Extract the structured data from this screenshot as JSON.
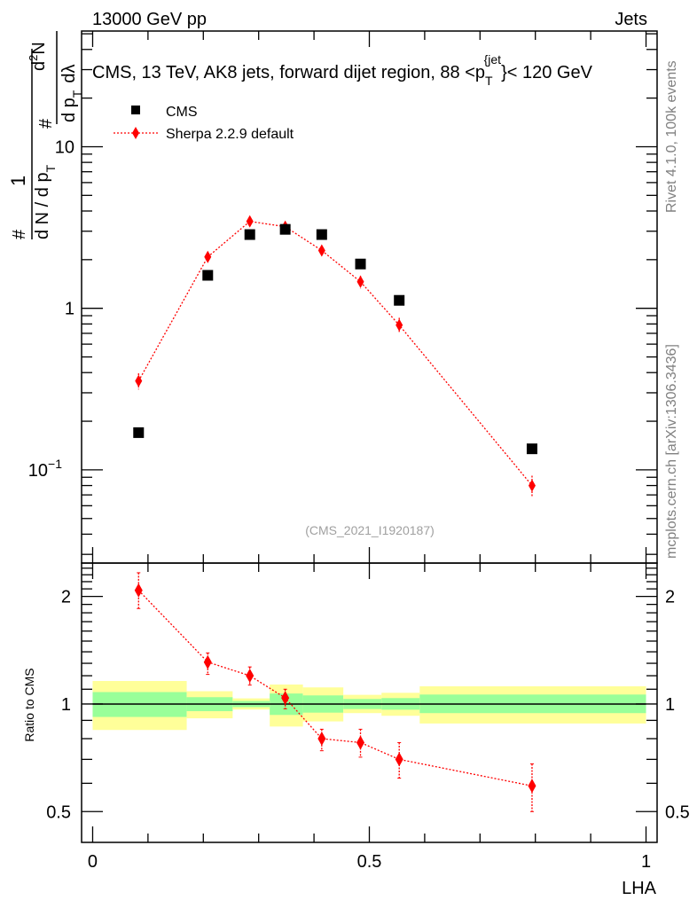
{
  "header": {
    "left": "13000 GeV pp",
    "right": "Jets"
  },
  "side": {
    "top": "Rivet 4.1.0,  100k events",
    "bottom": "mcplots.cern.ch [arXiv:1306.3436]"
  },
  "analysis_id": "(CMS_2021_I1920187)",
  "colors": {
    "data": "#000000",
    "mc": "#ff0000",
    "band_inner": "#99ff99",
    "band_outer": "#ffff99"
  },
  "chart_data": [
    {
      "type": "scatter",
      "title": "CMS, 13 TeV, AK8 jets, forward dijet region, 88 <p_T^{jet}< 120 GeV",
      "title_parts": {
        "main": "CMS, 13 TeV, AK8 jets, forward dijet region, 88 <p",
        "sub": "T",
        "sup": "{jet",
        "tail": "}< 120 GeV"
      },
      "ylabel": "1/(dN/dp_T) d²N/(dp_T dλ)",
      "ylabel_parts": {
        "hash": "#",
        "one": "1",
        "den": "d N / d p",
        "num_d": "d",
        "num_N": "N",
        "num_sup": "2",
        "hash2": "#",
        "den2": "d p",
        "T": "T",
        "dl": "dλ"
      },
      "yscale": "log",
      "xlim": [
        -0.02,
        1.02
      ],
      "ylim": [
        0.0265,
        52
      ],
      "ytick_labels": [
        {
          "v": 10,
          "label": "10"
        },
        {
          "v": 1,
          "label": "1"
        },
        {
          "v": 0.1,
          "label": "10",
          "sup": "−1"
        }
      ],
      "legend_position": "top-left",
      "series": [
        {
          "name": "CMS",
          "marker": "square",
          "x": [
            0.083,
            0.208,
            0.284,
            0.348,
            0.414,
            0.484,
            0.554,
            0.794
          ],
          "y": [
            0.17,
            1.6,
            2.86,
            3.08,
            2.86,
            1.88,
            1.12,
            0.135
          ]
        },
        {
          "name": "Sherpa 2.2.9 default",
          "marker": "diamond",
          "line": "dotted",
          "x": [
            0.083,
            0.208,
            0.284,
            0.348,
            0.414,
            0.484,
            0.554,
            0.794
          ],
          "y": [
            0.355,
            2.08,
            3.45,
            3.2,
            2.28,
            1.46,
            0.787,
            0.08
          ],
          "yerr_rel": [
            0.115,
            0.06,
            0.06,
            0.065,
            0.07,
            0.09,
            0.11,
            0.15
          ]
        }
      ]
    },
    {
      "type": "scatter",
      "ylabel": "Ratio to CMS",
      "xlabel": "LHA",
      "yscale": "log",
      "xlim": [
        -0.02,
        1.02
      ],
      "ylim": [
        0.41,
        2.48
      ],
      "xtick_labels": [
        {
          "v": 0,
          "label": "0"
        },
        {
          "v": 0.5,
          "label": "0.5"
        },
        {
          "v": 1,
          "label": "1"
        }
      ],
      "ytick_labels": [
        {
          "v": 2,
          "label": "2"
        },
        {
          "v": 1,
          "label": "1"
        },
        {
          "v": 0.5,
          "label": "0.5"
        }
      ],
      "bands": {
        "edges": [
          0,
          0.17,
          0.253,
          0.32,
          0.38,
          0.453,
          0.522,
          0.591,
          1.0
        ],
        "inner_low": [
          0.92,
          0.955,
          0.98,
          0.932,
          0.946,
          0.968,
          0.964,
          0.943
        ],
        "inner_high": [
          1.08,
          1.045,
          1.02,
          1.07,
          1.057,
          1.033,
          1.039,
          1.063
        ],
        "outer_low": [
          0.846,
          0.912,
          0.965,
          0.865,
          0.894,
          0.943,
          0.927,
          0.882
        ],
        "outer_high": [
          1.16,
          1.086,
          1.037,
          1.134,
          1.113,
          1.061,
          1.075,
          1.121
        ]
      },
      "series": [
        {
          "name": "Sherpa 2.2.9 default / CMS",
          "x": [
            0.083,
            0.208,
            0.284,
            0.348,
            0.414,
            0.484,
            0.554,
            0.794
          ],
          "y": [
            2.08,
            1.31,
            1.2,
            1.04,
            0.8,
            0.78,
            0.7,
            0.59
          ],
          "ylow": [
            1.85,
            1.21,
            1.13,
            0.97,
            0.74,
            0.71,
            0.62,
            0.5
          ],
          "yhigh": [
            2.33,
            1.39,
            1.27,
            1.1,
            0.85,
            0.85,
            0.78,
            0.68
          ]
        }
      ]
    }
  ]
}
